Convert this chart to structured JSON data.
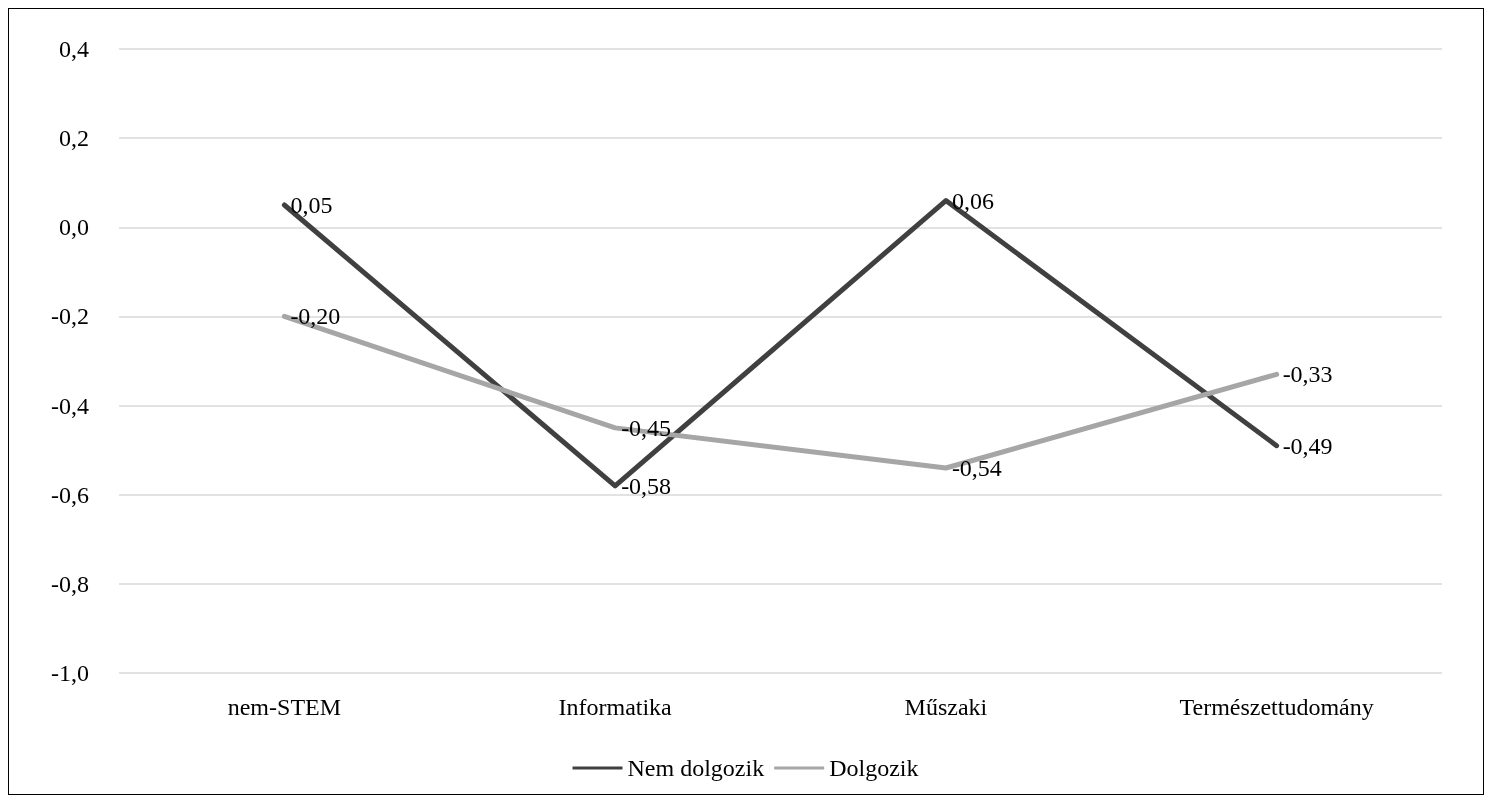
{
  "chart_data": {
    "type": "line",
    "categories": [
      "nem-STEM",
      "Informatika",
      "Műszaki",
      "Természettudomány"
    ],
    "series": [
      {
        "name": "Nem dolgozik",
        "color": "#404040",
        "values": [
          0.05,
          -0.58,
          0.06,
          -0.49
        ],
        "value_labels": [
          "0,05",
          "-0,58",
          "0,06",
          "-0,49"
        ]
      },
      {
        "name": "Dolgozik",
        "color": "#a6a6a6",
        "values": [
          -0.2,
          -0.45,
          -0.54,
          -0.33
        ],
        "value_labels": [
          "-0,20",
          "-0,45",
          "-0,54",
          "-0,33"
        ]
      }
    ],
    "ylim": [
      -1,
      0.4
    ],
    "yticks": [
      {
        "value": -1,
        "label": "-1,0"
      },
      {
        "value": -0.8,
        "label": "-0,8"
      },
      {
        "value": -0.6,
        "label": "-0,6"
      },
      {
        "value": -0.4,
        "label": "-0,4"
      },
      {
        "value": -0.2,
        "label": "-0,2"
      },
      {
        "value": 0,
        "label": "0,0"
      },
      {
        "value": 0.2,
        "label": "0,2"
      },
      {
        "value": 0.4,
        "label": "0,4"
      }
    ],
    "grid": "y",
    "legend": "bottom",
    "marker": "none",
    "line_style": "solid"
  }
}
